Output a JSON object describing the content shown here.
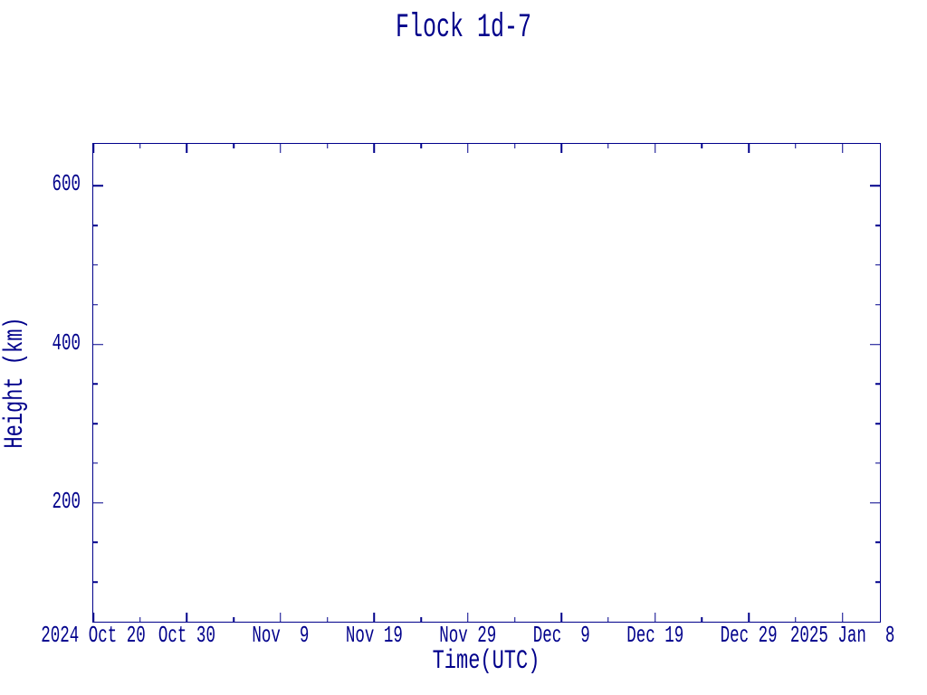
{
  "page": {
    "background": "#ffffff",
    "accent": "#00008b"
  },
  "chart_data": {
    "type": "line",
    "title": "Flock 1d-7",
    "xlabel": "Time(UTC)",
    "ylabel": "Height (km)",
    "x_range_days": [
      0,
      84
    ],
    "x_epoch": "2024 Oct 20",
    "y_range_km": [
      50,
      653
    ],
    "x_minor_interval_days": 5,
    "x_major_interval_days": 10,
    "y_minor_interval_km": 50,
    "y_major_interval_km": 200,
    "x_ticks": [
      {
        "day": 0,
        "major": true,
        "label": "2024 Oct 20"
      },
      {
        "day": 5,
        "major": false
      },
      {
        "day": 10,
        "major": true,
        "label": "Oct 30"
      },
      {
        "day": 15,
        "major": false
      },
      {
        "day": 20,
        "major": true,
        "label": "Nov  9"
      },
      {
        "day": 25,
        "major": false
      },
      {
        "day": 30,
        "major": true,
        "label": "Nov 19"
      },
      {
        "day": 35,
        "major": false
      },
      {
        "day": 40,
        "major": true,
        "label": "Nov 29"
      },
      {
        "day": 45,
        "major": false
      },
      {
        "day": 50,
        "major": true,
        "label": "Dec  9"
      },
      {
        "day": 55,
        "major": false
      },
      {
        "day": 60,
        "major": true,
        "label": "Dec 19"
      },
      {
        "day": 65,
        "major": false
      },
      {
        "day": 70,
        "major": true,
        "label": "Dec 29"
      },
      {
        "day": 75,
        "major": false
      },
      {
        "day": 80,
        "major": true,
        "label": "2025 Jan  8"
      }
    ],
    "y_ticks": [
      {
        "km": 100,
        "major": false
      },
      {
        "km": 150,
        "major": false
      },
      {
        "km": 200,
        "major": true,
        "label": "200"
      },
      {
        "km": 250,
        "major": false
      },
      {
        "km": 300,
        "major": false
      },
      {
        "km": 350,
        "major": false
      },
      {
        "km": 400,
        "major": true,
        "label": "400"
      },
      {
        "km": 450,
        "major": false
      },
      {
        "km": 500,
        "major": false
      },
      {
        "km": 550,
        "major": false
      },
      {
        "km": 600,
        "major": true,
        "label": "600"
      }
    ],
    "series": [],
    "legend": null,
    "grid": false
  }
}
